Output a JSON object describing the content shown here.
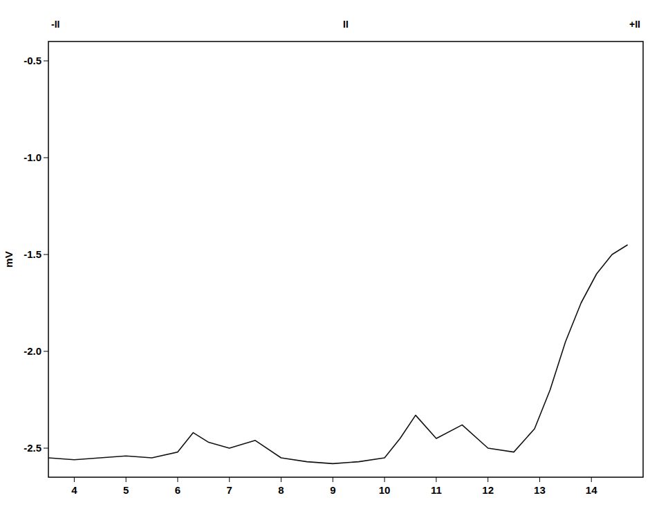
{
  "chart_data": {
    "type": "line",
    "y_label": "mV",
    "annotations": [
      "-II",
      "II",
      "+II"
    ],
    "x": [
      3.5,
      4,
      4.5,
      5,
      5.5,
      6,
      6.3,
      6.6,
      7,
      7.5,
      8,
      8.5,
      9,
      9.5,
      10,
      10.3,
      10.6,
      11,
      11.5,
      12,
      12.5,
      12.9,
      13.2,
      13.5,
      13.8,
      14.1,
      14.4,
      14.7
    ],
    "series": [
      {
        "name": "mV",
        "color": "#111111",
        "values": [
          -2.55,
          -2.56,
          -2.55,
          -2.54,
          -2.55,
          -2.52,
          -2.42,
          -2.47,
          -2.5,
          -2.46,
          -2.55,
          -2.57,
          -2.58,
          -2.57,
          -2.55,
          -2.45,
          -2.33,
          -2.45,
          -2.38,
          -2.5,
          -2.52,
          -2.4,
          -2.2,
          -1.95,
          -1.75,
          -1.6,
          -1.5,
          -1.45
        ]
      }
    ],
    "xlim": [
      3.5,
      15
    ],
    "xticks": [
      4,
      5,
      6,
      7,
      8,
      9,
      10,
      11,
      12,
      13,
      14
    ],
    "ylim": [
      -2.65,
      -0.4
    ],
    "yticks": [
      -2.5,
      {
        "value": -2,
        "label": "-2.0"
      },
      -1.5,
      {
        "value": -1,
        "label": "-1.0"
      },
      -0.5
    ],
    "grid": false
  }
}
